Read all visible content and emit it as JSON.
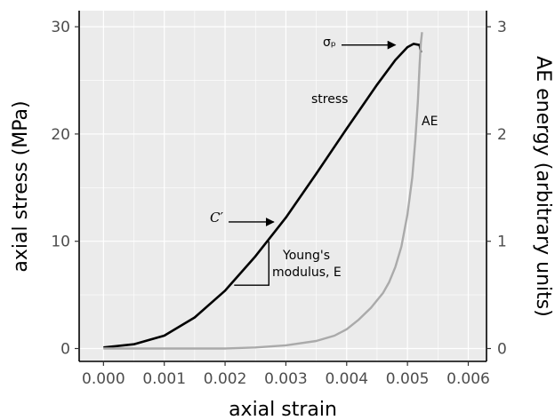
{
  "chart_data": {
    "type": "line",
    "xlabel": "axial strain",
    "ylabel": "axial stress (MPa)",
    "ylabel_right": "AE energy (arbitrary units)",
    "xlim": [
      -0.0004,
      0.0063
    ],
    "ylim": [
      -1.2,
      31.5
    ],
    "ylim_right": [
      -0.12,
      3.15
    ],
    "x_ticks": [
      0.0,
      0.001,
      0.002,
      0.003,
      0.004,
      0.005,
      0.006
    ],
    "x_tick_labels": [
      "0.000",
      "0.001",
      "0.002",
      "0.003",
      "0.004",
      "0.005",
      "0.006"
    ],
    "y_ticks": [
      0,
      10,
      20,
      30
    ],
    "y_tick_labels": [
      "0",
      "10",
      "20",
      "30"
    ],
    "y_right_ticks": [
      0,
      1,
      2,
      3
    ],
    "y_right_tick_labels": [
      "0",
      "1",
      "2",
      "3"
    ],
    "grid": true,
    "background": "#ebebeb",
    "series": [
      {
        "name": "stress",
        "axis": "left",
        "color": "#000000",
        "x": [
          0.0,
          0.0005,
          0.001,
          0.0015,
          0.002,
          0.0025,
          0.003,
          0.0035,
          0.004,
          0.0045,
          0.0048,
          0.005,
          0.0051,
          0.0052,
          0.00522
        ],
        "y": [
          0.1,
          0.4,
          1.2,
          2.9,
          5.4,
          8.6,
          12.2,
          16.3,
          20.5,
          24.6,
          26.9,
          28.1,
          28.4,
          28.3,
          27.6
        ]
      },
      {
        "name": "AE",
        "axis": "right",
        "color": "#aaaaaa",
        "x": [
          0.0,
          0.001,
          0.002,
          0.0025,
          0.003,
          0.0035,
          0.0038,
          0.004,
          0.0042,
          0.0044,
          0.0046,
          0.0047,
          0.0048,
          0.0049,
          0.005,
          0.00508,
          0.00513,
          0.00517,
          0.0052,
          0.00522,
          0.00524
        ],
        "y": [
          0.0,
          0.0,
          0.0,
          0.01,
          0.03,
          0.07,
          0.12,
          0.18,
          0.27,
          0.38,
          0.52,
          0.62,
          0.76,
          0.95,
          1.25,
          1.6,
          1.95,
          2.3,
          2.65,
          2.85,
          2.95
        ]
      }
    ],
    "annotations": {
      "sigma_label": "σₚ",
      "stress_label": "stress",
      "ae_label": "AE",
      "c_prime_label": "C′",
      "youngs_line1": "Young's",
      "youngs_line2": "modulus, E",
      "slope_triangle": {
        "x1": 0.00215,
        "y1": 5.9,
        "x2": 0.00272,
        "y2": 10.0
      },
      "sigma_arrow_target": {
        "x": 0.00483,
        "y": 28.3
      },
      "c_prime_arrow_target": {
        "x": 0.00283,
        "y": 11.8
      }
    }
  }
}
